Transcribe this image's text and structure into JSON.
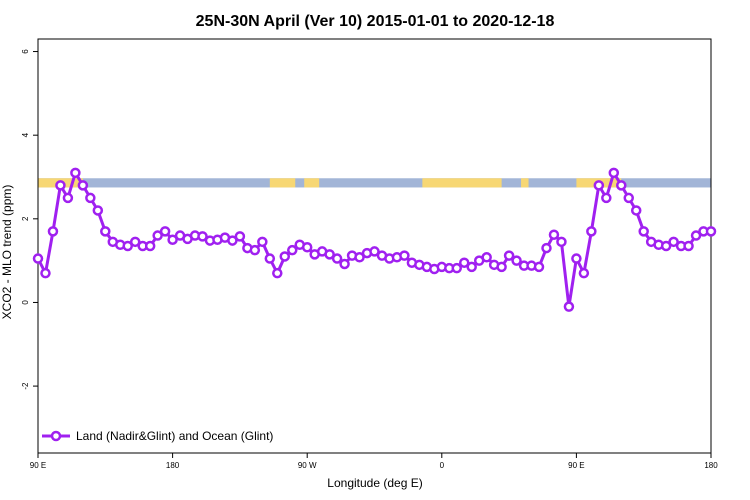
{
  "chart_data": {
    "type": "line",
    "title": "25N-30N April (Ver 10)   2015-01-01 to 2020-12-18",
    "xlabel": "Longitude (deg E)",
    "ylabel": "XCO2 - MLO trend (ppm)",
    "xlim": [
      90,
      540
    ],
    "ylim": [
      -3.6,
      6.3
    ],
    "y_ticks": [
      -2,
      0,
      2,
      4,
      6
    ],
    "x_ticks": [
      {
        "value": 90,
        "label": "90 E"
      },
      {
        "value": 180,
        "label": "180"
      },
      {
        "value": 270,
        "label": "90 W"
      },
      {
        "value": 360,
        "label": "0"
      },
      {
        "value": 450,
        "label": "90 E"
      },
      {
        "value": 540,
        "label": "180"
      }
    ],
    "grid": false,
    "legend_position": "bottom-left",
    "series": [
      {
        "name": "Land (Nadir&Glint) and Ocean (Glint)",
        "color": "#a020f0",
        "x": [
          90,
          95,
          100,
          105,
          110,
          115,
          120,
          125,
          130,
          135,
          140,
          145,
          150,
          155,
          160,
          165,
          170,
          175,
          180,
          185,
          190,
          195,
          200,
          205,
          210,
          215,
          220,
          225,
          230,
          235,
          240,
          245,
          250,
          255,
          260,
          265,
          270,
          275,
          280,
          285,
          290,
          295,
          300,
          305,
          310,
          315,
          320,
          325,
          330,
          335,
          340,
          345,
          350,
          355,
          360,
          365,
          370,
          375,
          380,
          385,
          390,
          395,
          400,
          405,
          410,
          415,
          420,
          425,
          430,
          435,
          440,
          445,
          450,
          455,
          460,
          465,
          470,
          475,
          480,
          485,
          490,
          495,
          500,
          505,
          510,
          515,
          520,
          525,
          530,
          535,
          540
        ],
        "y": [
          1.05,
          0.7,
          1.7,
          2.8,
          2.5,
          3.1,
          2.8,
          2.5,
          2.2,
          1.7,
          1.45,
          1.38,
          1.35,
          1.45,
          1.35,
          1.35,
          1.6,
          1.7,
          1.5,
          1.6,
          1.52,
          1.6,
          1.58,
          1.48,
          1.5,
          1.55,
          1.48,
          1.58,
          1.3,
          1.25,
          1.45,
          1.05,
          0.7,
          1.1,
          1.25,
          1.38,
          1.32,
          1.15,
          1.22,
          1.15,
          1.05,
          0.92,
          1.12,
          1.08,
          1.18,
          1.22,
          1.12,
          1.05,
          1.08,
          1.12,
          0.95,
          0.9,
          0.85,
          0.8,
          0.85,
          0.82,
          0.82,
          0.95,
          0.85,
          1.0,
          1.08,
          0.9,
          0.85,
          1.12,
          1.0,
          0.88,
          0.88,
          0.85,
          1.3,
          1.62,
          1.45,
          -0.1,
          1.05,
          0.7,
          1.7,
          2.8,
          2.5,
          3.1,
          2.8,
          2.5,
          2.2,
          1.7,
          1.45,
          1.38,
          1.35,
          1.45,
          1.35,
          1.35,
          1.6,
          1.7,
          1.7
        ]
      }
    ],
    "land_ocean_strip": {
      "y_range": [
        2.75,
        2.97
      ],
      "ocean_color": "#a2b5d7",
      "land_color": "#f7d774",
      "land_segments": [
        [
          90,
          120
        ],
        [
          245,
          262
        ],
        [
          268,
          278
        ],
        [
          347,
          400
        ],
        [
          413,
          418
        ],
        [
          450,
          480
        ]
      ]
    }
  }
}
